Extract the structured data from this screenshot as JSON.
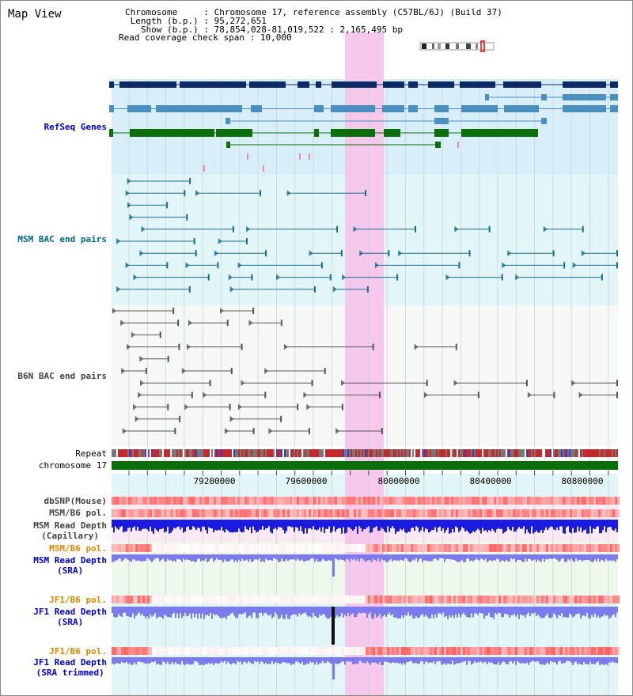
{
  "header": {
    "title": "Map View",
    "info_lines": [
      {
        "key": "Chromosome     ",
        "value": "Chromosome 17, reference assembly (C57BL/6J) (Build 37)"
      },
      {
        "key": " Length (b.p.) ",
        "value": "95,272,651"
      },
      {
        "key": "   Show (b.p.) ",
        "value": "78,854,028-81,019,522 : 2,165,495 bp"
      },
      {
        "key": "Read coverage check span ",
        "value": "10,000"
      }
    ]
  },
  "tracks": {
    "refseq": {
      "label": "RefSeq Genes",
      "color": "#0000cc"
    },
    "msm_bac": {
      "label": "MSM BAC end pairs",
      "color": "#006688"
    },
    "b6n_bac": {
      "label": "B6N BAC end pairs",
      "color": "#444444"
    },
    "repeat": {
      "label": "Repeat",
      "color": "#000000"
    },
    "chromosome": {
      "label": "chromosome 17",
      "color": "#000000"
    },
    "dbsnp": {
      "label": "dbSNP(Mouse)",
      "color": "#444444"
    },
    "msm_b6_pol_1": {
      "label": "MSM/B6 pol.",
      "color": "#444444"
    },
    "msm_capillary": {
      "label": "MSM Read Depth\n(Capillary)",
      "color": "#444444"
    },
    "msm_b6_pol_2": {
      "label": "MSM/B6 pol.",
      "color": "#dd8800"
    },
    "msm_sra": {
      "label": "MSM Read Depth\n(SRA)",
      "color": "#0000cc"
    },
    "jf1_b6_pol_1": {
      "label": "JF1/B6 pol.",
      "color": "#dd8800"
    },
    "jf1_sra": {
      "label": "JF1 Read Depth\n(SRA)",
      "color": "#0000cc"
    },
    "jf1_b6_pol_2": {
      "label": "JF1/B6 pol.",
      "color": "#dd8800"
    },
    "jf1_trimmed": {
      "label": "JF1 Read Depth\n(SRA trimmed)",
      "color": "#0000cc"
    }
  },
  "axis": {
    "ticks": [
      "79200000",
      "79600000",
      "80000000",
      "80400000",
      "80800000"
    ]
  },
  "colors": {
    "refseq_dark": "#0b2a66",
    "refseq_mid": "#4a8fc0",
    "refseq_green": "#0a6e0a",
    "highlight": "#f5c8ec",
    "msm_line": "#1a6e8a",
    "b6n_line": "#555555",
    "depth_blue": "#1a1ae0",
    "depth_light": "#7b7bee"
  }
}
